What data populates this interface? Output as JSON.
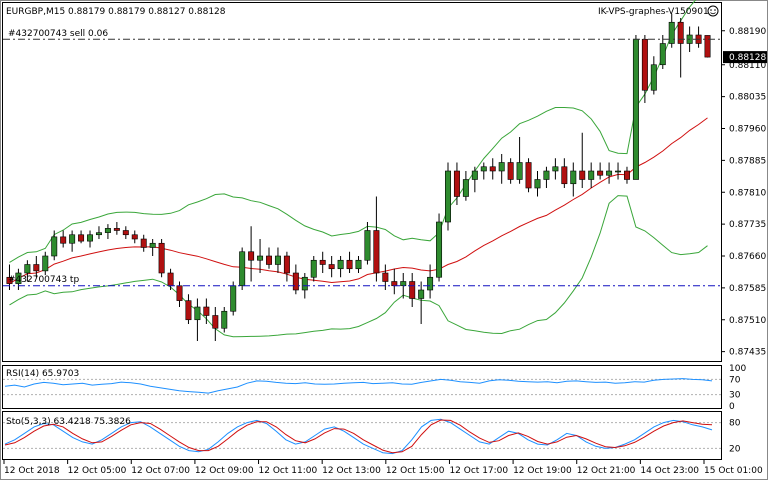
{
  "header": {
    "symbol_info": "EURGBP,M15  0.88179 0.88179 0.88127 0.88128",
    "expert": "IK-VPS-graphes-V150901",
    "expert_icon": "smiley-icon"
  },
  "trade_lines": {
    "sell_label": "#432700743 sell 0.06",
    "tp_label": "#432700743 tp",
    "sell_price": 0.8817,
    "tp_price": 0.8759,
    "current_price_label": "0.88128",
    "current_price": 0.88128
  },
  "colors": {
    "bull": "#2e8b2e",
    "bear": "#b01010",
    "bands": "#3aa63a",
    "ma": "#d01010",
    "rsi": "#1e90ff",
    "stoch_main": "#1e90ff",
    "stoch_signal": "#d01010",
    "tp_line": "#1010c0",
    "grid_dash": "#b0b0b0"
  },
  "price_axis": {
    "ticks": [
      "0.88190",
      "0.88110",
      "0.88035",
      "0.87960",
      "0.87885",
      "0.87810",
      "0.87735",
      "0.87660",
      "0.87585",
      "0.87510",
      "0.87435"
    ],
    "min": 0.8742,
    "max": 0.8822
  },
  "rsi": {
    "label": "RSI(14) 65.9703",
    "ticks": [
      "100",
      "70",
      "30",
      "0"
    ],
    "levels": [
      70,
      30
    ],
    "values": [
      52,
      55,
      50,
      58,
      62,
      60,
      56,
      58,
      60,
      55,
      57,
      59,
      63,
      61,
      58,
      52,
      48,
      44,
      40,
      38,
      36,
      34,
      40,
      45,
      50,
      60,
      66,
      65,
      62,
      60,
      59,
      61,
      58,
      57,
      58,
      60,
      61,
      62,
      59,
      60,
      61,
      58,
      57,
      62,
      66,
      70,
      68,
      64,
      62,
      60,
      66,
      69,
      68,
      65,
      64,
      63,
      64,
      61,
      65,
      66,
      64,
      62,
      63,
      60,
      61,
      64,
      63,
      68,
      70,
      71,
      72,
      70,
      69,
      66
    ]
  },
  "stoch": {
    "label": "Sto(5,3,3) 63.4218 75.3826",
    "ticks": [
      "80",
      "20"
    ],
    "levels": [
      80,
      20
    ],
    "main": [
      30,
      40,
      55,
      70,
      78,
      75,
      60,
      45,
      35,
      30,
      40,
      55,
      70,
      80,
      82,
      70,
      55,
      40,
      25,
      15,
      12,
      18,
      35,
      55,
      70,
      80,
      85,
      78,
      60,
      40,
      30,
      35,
      50,
      65,
      70,
      60,
      45,
      30,
      20,
      10,
      8,
      15,
      40,
      70,
      85,
      88,
      80,
      65,
      50,
      35,
      30,
      45,
      60,
      55,
      40,
      30,
      28,
      40,
      55,
      50,
      35,
      25,
      20,
      22,
      30,
      40,
      55,
      70,
      80,
      85,
      82,
      75,
      70,
      63
    ],
    "signal": [
      28,
      33,
      45,
      60,
      72,
      76,
      70,
      55,
      42,
      33,
      35,
      48,
      62,
      75,
      80,
      78,
      65,
      50,
      35,
      22,
      15,
      15,
      25,
      42,
      60,
      74,
      82,
      82,
      70,
      52,
      38,
      33,
      42,
      56,
      66,
      65,
      55,
      40,
      28,
      16,
      10,
      12,
      25,
      52,
      75,
      86,
      85,
      74,
      58,
      44,
      34,
      38,
      50,
      56,
      48,
      36,
      30,
      35,
      46,
      50,
      42,
      32,
      24,
      22,
      26,
      34,
      46,
      60,
      72,
      80,
      84,
      80,
      76,
      75
    ]
  },
  "time_axis": {
    "labels": [
      "12 Oct 2018",
      "12 Oct 05:00",
      "12 Oct 07:00",
      "12 Oct 09:00",
      "12 Oct 11:00",
      "12 Oct 13:00",
      "12 Oct 15:00",
      "12 Oct 17:00",
      "12 Oct 19:00",
      "12 Oct 21:00",
      "14 Oct 23:00",
      "15 Oct 01:00"
    ]
  },
  "candles": [
    [
      0.8761,
      0.8764,
      0.8758,
      0.87595
    ],
    [
      0.87595,
      0.8763,
      0.8758,
      0.8762
    ],
    [
      0.8762,
      0.8765,
      0.876,
      0.8764
    ],
    [
      0.8764,
      0.8766,
      0.8761,
      0.87625
    ],
    [
      0.87625,
      0.8767,
      0.87615,
      0.8766
    ],
    [
      0.8766,
      0.8772,
      0.8765,
      0.87705
    ],
    [
      0.87705,
      0.8772,
      0.8768,
      0.8769
    ],
    [
      0.8769,
      0.8772,
      0.8767,
      0.8771
    ],
    [
      0.8771,
      0.8772,
      0.8769,
      0.87695
    ],
    [
      0.87695,
      0.8772,
      0.8768,
      0.8771
    ],
    [
      0.8771,
      0.8773,
      0.877,
      0.87715
    ],
    [
      0.87715,
      0.87735,
      0.877,
      0.87725
    ],
    [
      0.87725,
      0.8774,
      0.8771,
      0.8772
    ],
    [
      0.8772,
      0.8773,
      0.877,
      0.8771
    ],
    [
      0.8771,
      0.8772,
      0.8769,
      0.877
    ],
    [
      0.877,
      0.8771,
      0.8767,
      0.8768
    ],
    [
      0.8768,
      0.877,
      0.8766,
      0.8769
    ],
    [
      0.8769,
      0.877,
      0.8761,
      0.8762
    ],
    [
      0.8762,
      0.8763,
      0.8758,
      0.8759
    ],
    [
      0.8759,
      0.876,
      0.8754,
      0.87555
    ],
    [
      0.87555,
      0.8757,
      0.875,
      0.8751
    ],
    [
      0.8751,
      0.8756,
      0.8746,
      0.8754
    ],
    [
      0.8754,
      0.8756,
      0.875,
      0.8752
    ],
    [
      0.8752,
      0.8754,
      0.8746,
      0.8749
    ],
    [
      0.8749,
      0.8754,
      0.8748,
      0.8753
    ],
    [
      0.8753,
      0.876,
      0.8752,
      0.8759
    ],
    [
      0.8759,
      0.8768,
      0.8758,
      0.8767
    ],
    [
      0.8767,
      0.8773,
      0.876,
      0.8765
    ],
    [
      0.8765,
      0.877,
      0.8762,
      0.8766
    ],
    [
      0.8766,
      0.8768,
      0.8763,
      0.8764
    ],
    [
      0.8764,
      0.8768,
      0.8762,
      0.8766
    ],
    [
      0.8766,
      0.8767,
      0.876,
      0.8762
    ],
    [
      0.8762,
      0.8764,
      0.8757,
      0.8758
    ],
    [
      0.8758,
      0.8762,
      0.8756,
      0.8761
    ],
    [
      0.8761,
      0.8766,
      0.876,
      0.8765
    ],
    [
      0.8765,
      0.8767,
      0.8762,
      0.8764
    ],
    [
      0.8764,
      0.8766,
      0.8761,
      0.8763
    ],
    [
      0.8763,
      0.8766,
      0.8761,
      0.8765
    ],
    [
      0.8765,
      0.8767,
      0.8762,
      0.8763
    ],
    [
      0.8763,
      0.8766,
      0.8762,
      0.8765
    ],
    [
      0.8765,
      0.8774,
      0.8764,
      0.8772
    ],
    [
      0.8772,
      0.878,
      0.876,
      0.8762
    ],
    [
      0.8762,
      0.8764,
      0.8758,
      0.876
    ],
    [
      0.876,
      0.8763,
      0.8757,
      0.8759
    ],
    [
      0.8759,
      0.8762,
      0.8756,
      0.876
    ],
    [
      0.876,
      0.8762,
      0.8754,
      0.8756
    ],
    [
      0.8756,
      0.876,
      0.875,
      0.8758
    ],
    [
      0.8758,
      0.8764,
      0.8756,
      0.8761
    ],
    [
      0.8761,
      0.8776,
      0.876,
      0.8774
    ],
    [
      0.8774,
      0.8788,
      0.8772,
      0.8786
    ],
    [
      0.8786,
      0.8788,
      0.8778,
      0.878
    ],
    [
      0.878,
      0.8786,
      0.8779,
      0.8784
    ],
    [
      0.8784,
      0.8787,
      0.8781,
      0.8786
    ],
    [
      0.8786,
      0.8788,
      0.8784,
      0.8787
    ],
    [
      0.8787,
      0.8789,
      0.8784,
      0.8786
    ],
    [
      0.8786,
      0.879,
      0.8783,
      0.8788
    ],
    [
      0.8788,
      0.8789,
      0.8783,
      0.8784
    ],
    [
      0.8784,
      0.8794,
      0.8783,
      0.8788
    ],
    [
      0.8788,
      0.8789,
      0.8781,
      0.8782
    ],
    [
      0.8782,
      0.8786,
      0.878,
      0.8784
    ],
    [
      0.8784,
      0.8787,
      0.8782,
      0.8786
    ],
    [
      0.8786,
      0.8789,
      0.8784,
      0.8787
    ],
    [
      0.8787,
      0.8789,
      0.8782,
      0.8783
    ],
    [
      0.8783,
      0.8788,
      0.878,
      0.8786
    ],
    [
      0.8786,
      0.8795,
      0.8782,
      0.8784
    ],
    [
      0.8784,
      0.8788,
      0.8782,
      0.8786
    ],
    [
      0.8786,
      0.8788,
      0.8784,
      0.8785
    ],
    [
      0.8785,
      0.8788,
      0.8783,
      0.8786
    ],
    [
      0.8786,
      0.8788,
      0.8784,
      0.8786
    ],
    [
      0.8786,
      0.8787,
      0.8783,
      0.8784
    ],
    [
      0.8784,
      0.8818,
      0.8784,
      0.8817
    ],
    [
      0.8817,
      0.8818,
      0.8802,
      0.8805
    ],
    [
      0.8805,
      0.8813,
      0.8804,
      0.8811
    ],
    [
      0.8811,
      0.8818,
      0.881,
      0.8816
    ],
    [
      0.8816,
      0.8823,
      0.8815,
      0.8821
    ],
    [
      0.8821,
      0.8822,
      0.8808,
      0.8816
    ],
    [
      0.8816,
      0.882,
      0.8814,
      0.8818
    ],
    [
      0.8818,
      0.882,
      0.8815,
      0.8816
    ],
    [
      0.88179,
      0.88179,
      0.88127,
      0.88128
    ]
  ]
}
